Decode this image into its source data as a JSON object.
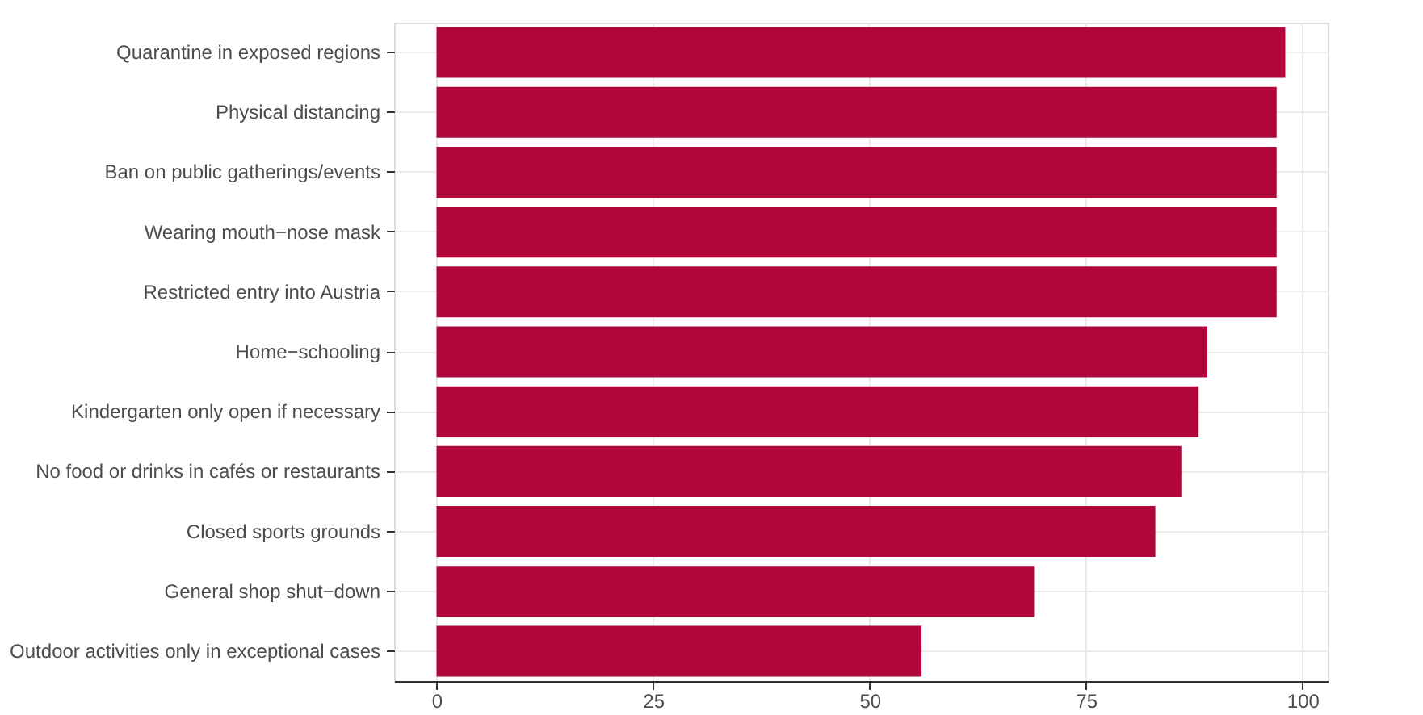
{
  "chart_data": {
    "type": "bar",
    "orientation": "horizontal",
    "categories": [
      "Quarantine in exposed regions",
      "Physical distancing",
      "Ban on public gatherings/events",
      "Wearing mouth−nose mask",
      "Restricted entry into Austria",
      "Home−schooling",
      "Kindergarten only open if necessary",
      "No food or drinks in cafés or restaurants",
      "Closed sports grounds",
      "General shop shut−down",
      "Outdoor activities only in exceptional cases"
    ],
    "values": [
      98,
      97,
      97,
      97,
      97,
      89,
      88,
      86,
      83,
      69,
      56
    ],
    "color": "#b0063a",
    "xlim": [
      -4.9,
      102.9
    ],
    "xticks": [
      0,
      25,
      50,
      75,
      100
    ],
    "grid": true
  }
}
